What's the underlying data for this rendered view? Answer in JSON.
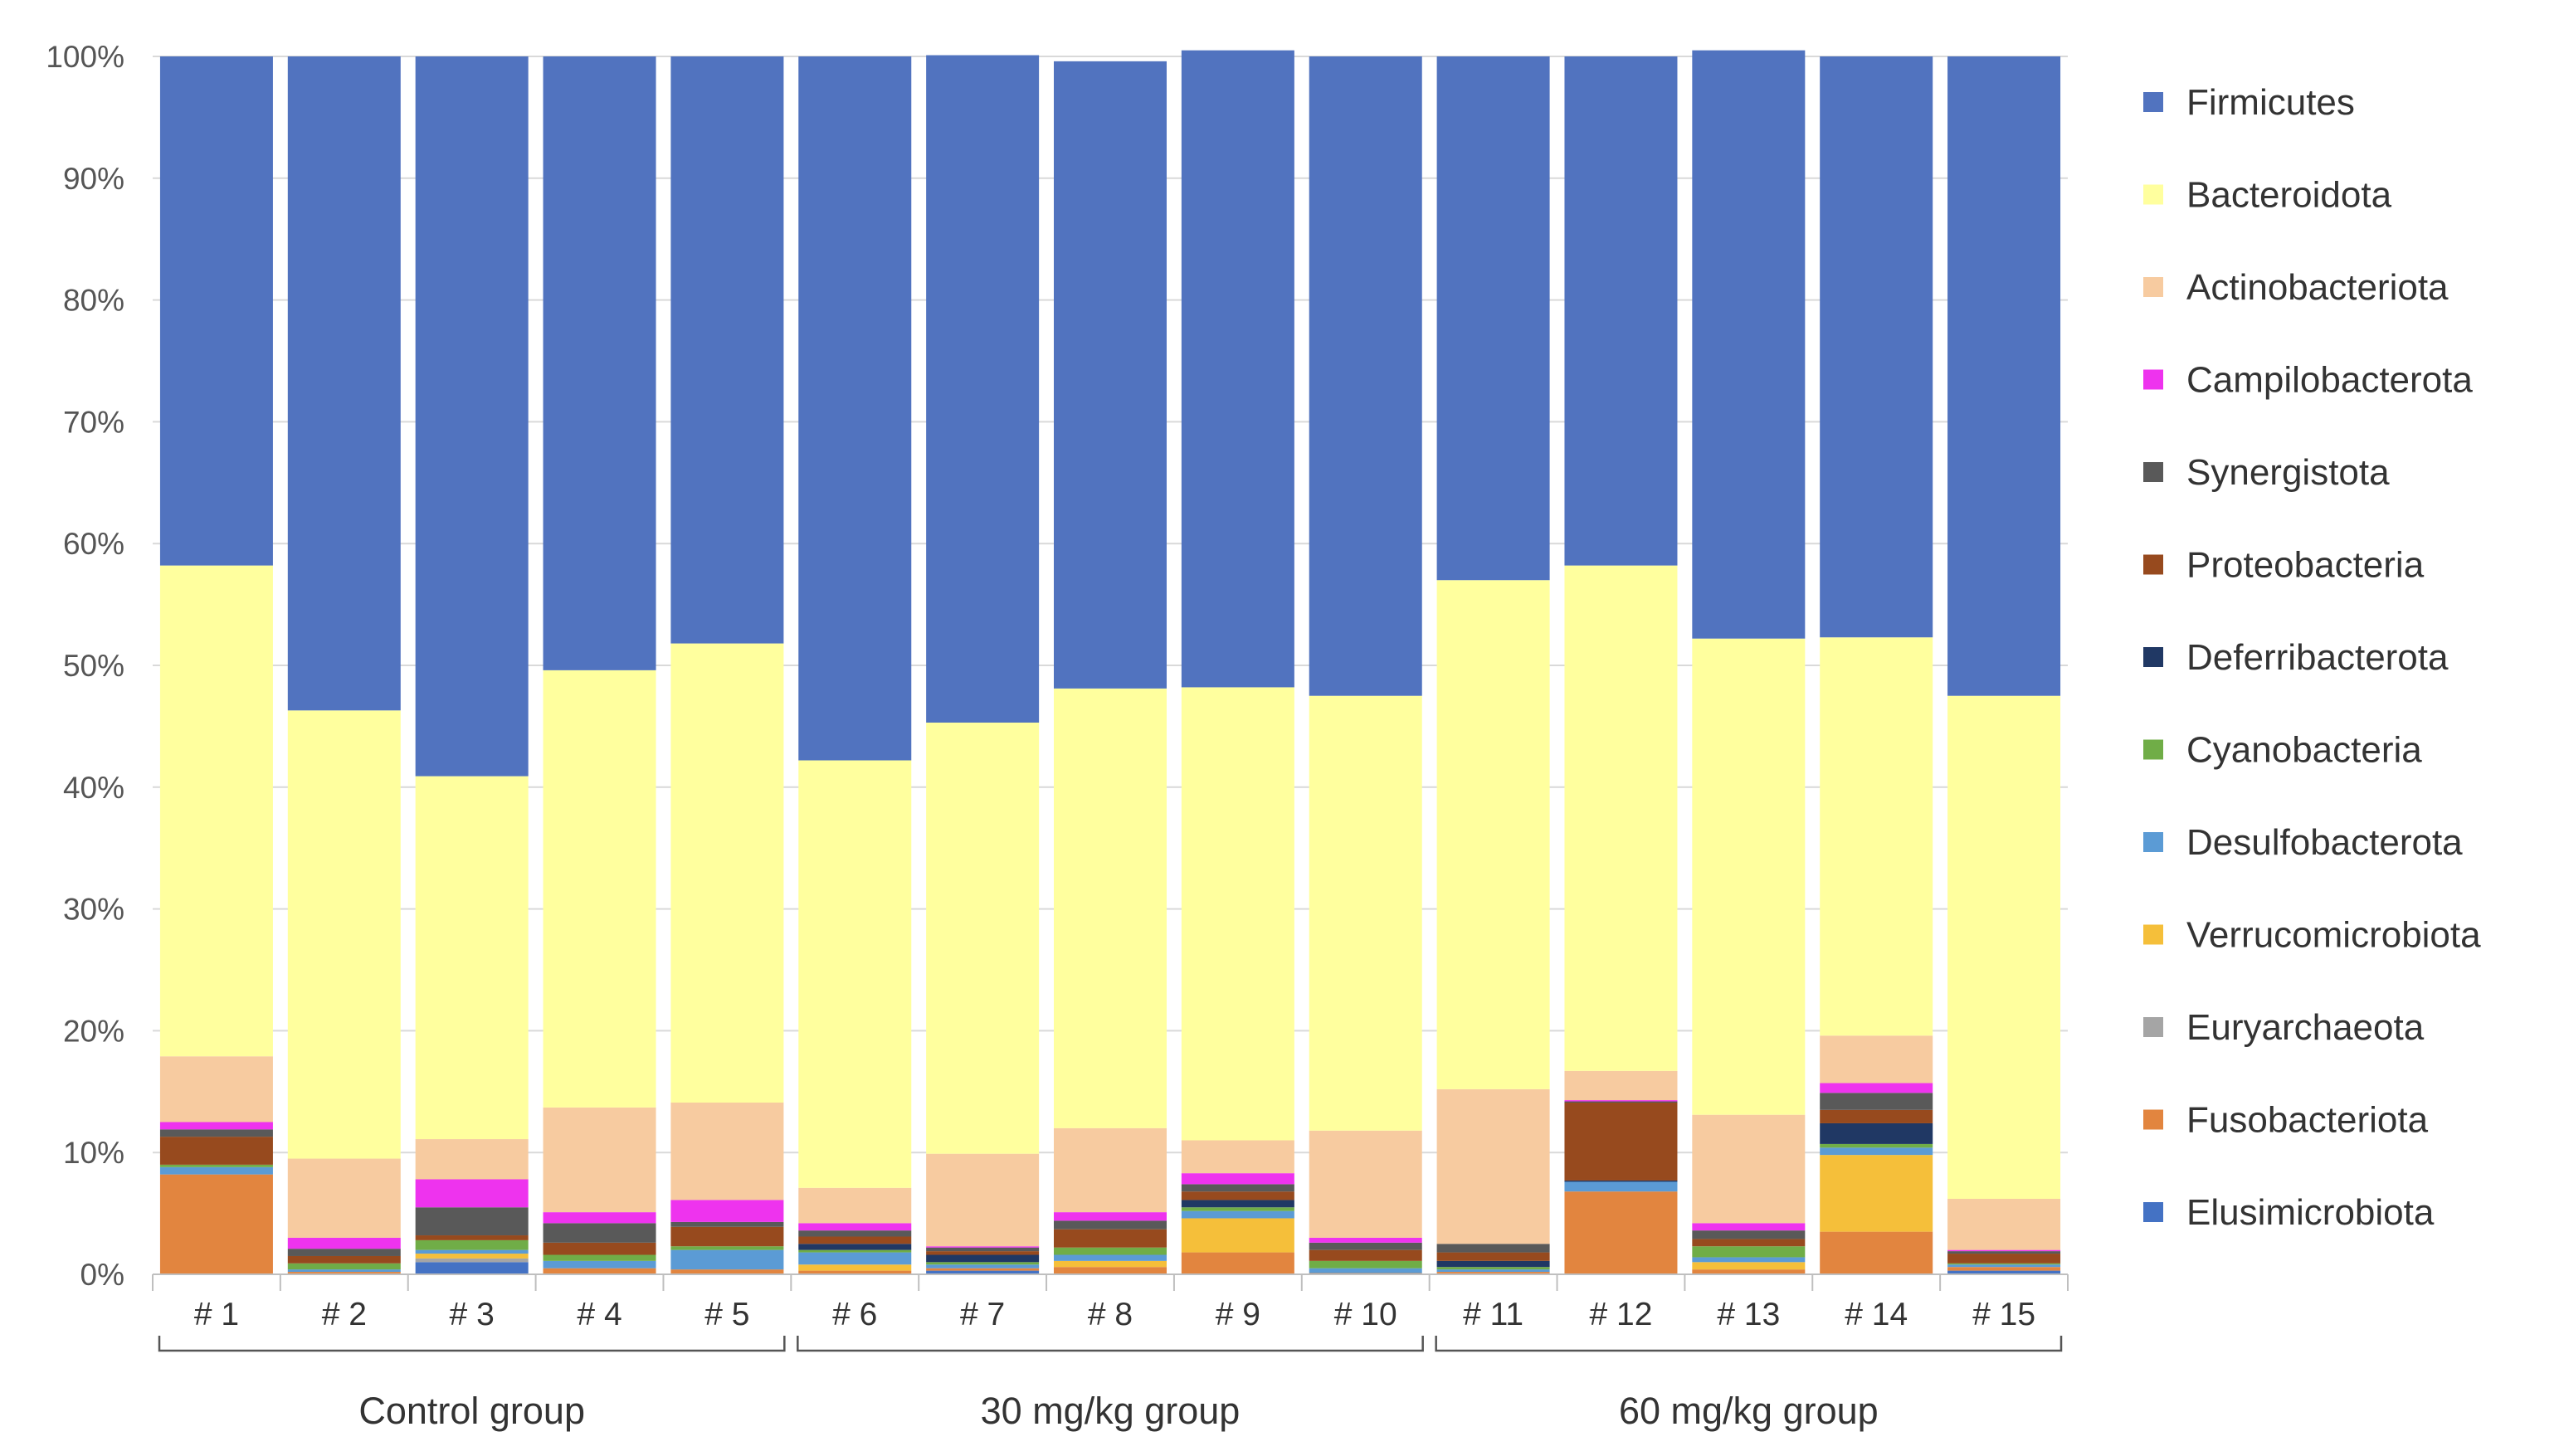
{
  "chart_data": {
    "type": "bar",
    "stacked": "percent",
    "title": "",
    "xlabel": "",
    "ylabel": "",
    "ylim": [
      0,
      100
    ],
    "yticks": [
      "0%",
      "10%",
      "20%",
      "30%",
      "40%",
      "50%",
      "60%",
      "70%",
      "80%",
      "90%",
      "100%"
    ],
    "grid": true,
    "legend_position": "right",
    "categories": [
      "# 1",
      "# 2",
      "# 3",
      "# 4",
      "# 5",
      "# 6",
      "# 7",
      "# 8",
      "# 9",
      "# 10",
      "# 11",
      "# 12",
      "# 13",
      "# 14",
      "# 15"
    ],
    "groups": [
      {
        "label": "Control group",
        "members": [
          "# 1",
          "# 2",
          "# 3",
          "# 4",
          "# 5"
        ]
      },
      {
        "label": "30 mg/kg group",
        "members": [
          "# 6",
          "# 7",
          "# 8",
          "# 9",
          "# 10"
        ]
      },
      {
        "label": "60 mg/kg group",
        "members": [
          "# 11",
          "# 12",
          "# 13",
          "# 14",
          "# 15"
        ]
      }
    ],
    "series": [
      {
        "name": "Elusimicrobiota",
        "color": "#4472C4",
        "values": [
          0.0,
          0.0,
          1.0,
          0.0,
          0.0,
          0.0,
          0.3,
          0.0,
          0.0,
          0.0,
          0.0,
          0.0,
          0.0,
          0.0,
          0.3
        ]
      },
      {
        "name": "Fusobacteriota",
        "color": "#E2853F",
        "values": [
          8.2,
          0.2,
          0.0,
          0.5,
          0.4,
          0.3,
          0.2,
          0.6,
          1.8,
          0.1,
          0.2,
          6.8,
          0.4,
          3.5,
          0.3
        ]
      },
      {
        "name": "Euryarchaeota",
        "color": "#A5A5A5",
        "values": [
          0.0,
          0.0,
          0.3,
          0.0,
          0.0,
          0.0,
          0.0,
          0.0,
          0.0,
          0.0,
          0.0,
          0.0,
          0.0,
          0.0,
          0.0
        ]
      },
      {
        "name": "Verrucomicrobiota",
        "color": "#F5BF3A",
        "values": [
          0.0,
          0.0,
          0.4,
          0.0,
          0.0,
          0.5,
          0.0,
          0.5,
          2.8,
          0.0,
          0.0,
          0.0,
          0.6,
          6.3,
          0.0
        ]
      },
      {
        "name": "Desulfobacterota",
        "color": "#5B9BD5",
        "values": [
          0.6,
          0.2,
          0.3,
          0.6,
          1.6,
          1.0,
          0.3,
          0.5,
          0.6,
          0.4,
          0.2,
          0.8,
          0.4,
          0.6,
          0.2
        ]
      },
      {
        "name": "Cyanobacteria",
        "color": "#70AD47",
        "values": [
          0.2,
          0.5,
          0.8,
          0.5,
          0.3,
          0.2,
          0.2,
          0.6,
          0.3,
          0.6,
          0.2,
          0.0,
          0.9,
          0.3,
          0.1
        ]
      },
      {
        "name": "Deferribacterota",
        "color": "#203864",
        "values": [
          0.0,
          0.0,
          0.0,
          0.0,
          0.0,
          0.5,
          0.6,
          0.0,
          0.6,
          0.0,
          0.5,
          0.1,
          0.0,
          1.7,
          0.0
        ]
      },
      {
        "name": "Proteobacteria",
        "color": "#974A1E",
        "values": [
          2.3,
          0.6,
          0.4,
          1.0,
          1.6,
          0.6,
          0.3,
          1.5,
          0.7,
          0.9,
          0.7,
          6.4,
          0.6,
          1.1,
          0.8
        ]
      },
      {
        "name": "Synergistota",
        "color": "#595959",
        "values": [
          0.6,
          0.6,
          2.3,
          1.6,
          0.4,
          0.5,
          0.3,
          0.7,
          0.6,
          0.6,
          0.7,
          0.1,
          0.7,
          1.4,
          0.2
        ]
      },
      {
        "name": "Campilobacterota",
        "color": "#EE33EE",
        "values": [
          0.6,
          0.9,
          2.3,
          0.9,
          1.8,
          0.6,
          0.1,
          0.7,
          0.9,
          0.4,
          0.0,
          0.1,
          0.6,
          0.8,
          0.1
        ]
      },
      {
        "name": "Actinobacteriota",
        "color": "#F7CBA0",
        "values": [
          5.4,
          6.5,
          3.3,
          8.6,
          8.0,
          2.9,
          7.6,
          6.9,
          2.7,
          8.8,
          12.7,
          2.4,
          8.9,
          3.9,
          4.2
        ]
      },
      {
        "name": "Bacteroidota",
        "color": "#FFFF9E",
        "values": [
          40.3,
          36.8,
          29.8,
          35.9,
          37.7,
          35.1,
          35.4,
          36.1,
          37.2,
          35.7,
          41.8,
          41.5,
          39.1,
          32.7,
          41.3
        ]
      },
      {
        "name": "Firmicutes",
        "color": "#5173BF",
        "values": [
          41.8,
          53.7,
          59.1,
          50.4,
          48.2,
          57.8,
          54.8,
          51.5,
          52.3,
          52.5,
          43.0,
          41.8,
          48.3,
          47.7,
          52.5
        ]
      }
    ],
    "legend": [
      "Firmicutes",
      "Bacteroidota",
      "Actinobacteriota",
      "Campilobacterota",
      "Synergistota",
      "Proteobacteria",
      "Deferribacterota",
      "Cyanobacteria",
      "Desulfobacterota",
      "Verrucomicrobiota",
      "Euryarchaeota",
      "Fusobacteriota",
      "Elusimicrobiota"
    ]
  }
}
